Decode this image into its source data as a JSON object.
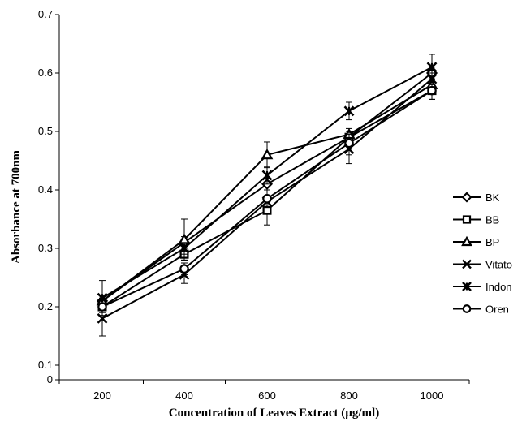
{
  "chart_data": {
    "type": "line",
    "title": "",
    "xlabel": "Concentration  of Leaves Extract (µg/ml)",
    "ylabel": "Absorbance  at 700nm",
    "x": [
      200,
      400,
      600,
      800,
      1000
    ],
    "x_ticks": [
      "200",
      "400",
      "600",
      "800",
      "1000"
    ],
    "y_ticks": [
      "0",
      "0.1",
      "0.2",
      "0.3",
      "0.4",
      "0.5",
      "0.6",
      "0.7"
    ],
    "ylim": [
      0.07,
      0.7
    ],
    "y_break": "axis jumps from 0 to 0.1",
    "grid": false,
    "legend_position": "right",
    "series": [
      {
        "name": "BK",
        "marker": "diamond",
        "values": [
          0.21,
          0.31,
          0.41,
          0.49,
          0.6
        ],
        "errors": [
          0.01,
          0.01,
          0.01,
          0.01,
          0.01
        ]
      },
      {
        "name": "BB",
        "marker": "square",
        "values": [
          0.2,
          0.29,
          0.365,
          0.49,
          0.57
        ],
        "errors": [
          0.01,
          0.01,
          0.025,
          0.01,
          0.015
        ]
      },
      {
        "name": "BP",
        "marker": "triangle",
        "values": [
          0.21,
          0.315,
          0.46,
          0.495,
          0.58
        ],
        "errors": [
          0.01,
          0.035,
          0.022,
          0.01,
          0.01
        ]
      },
      {
        "name": "Vitato",
        "marker": "x",
        "values": [
          0.18,
          0.255,
          0.38,
          0.47,
          0.59
        ],
        "errors": [
          0.03,
          0.015,
          0.01,
          0.025,
          0.01
        ]
      },
      {
        "name": "Indon",
        "marker": "star",
        "values": [
          0.215,
          0.3,
          0.425,
          0.535,
          0.61
        ],
        "errors": [
          0.03,
          0.01,
          0.015,
          0.015,
          0.022
        ]
      },
      {
        "name": "Oren",
        "marker": "circle",
        "values": [
          0.2,
          0.265,
          0.385,
          0.48,
          0.57
        ],
        "errors": [
          0.015,
          0.01,
          0.015,
          0.02,
          0.015
        ]
      }
    ]
  }
}
